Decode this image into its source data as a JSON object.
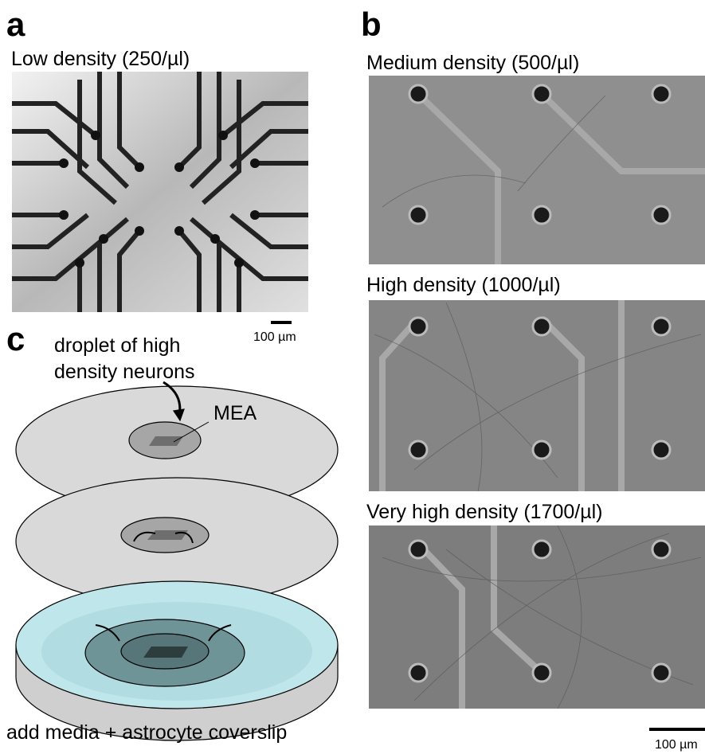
{
  "panel_a": {
    "letter": "a",
    "title": "Low density (250/µl)",
    "scale_bar": "100 µm"
  },
  "panel_b": {
    "letter": "b",
    "images": [
      {
        "title": "Medium density (500/µl)"
      },
      {
        "title": "High density (1000/µl)"
      },
      {
        "title": "Very high density (1700/µl)"
      }
    ],
    "scale_bar": "100 µm"
  },
  "panel_c": {
    "letter": "c",
    "droplet_label": [
      "droplet of high",
      "density neurons"
    ],
    "mea_label": "MEA",
    "caption": "add media + astrocyte coverslip"
  }
}
